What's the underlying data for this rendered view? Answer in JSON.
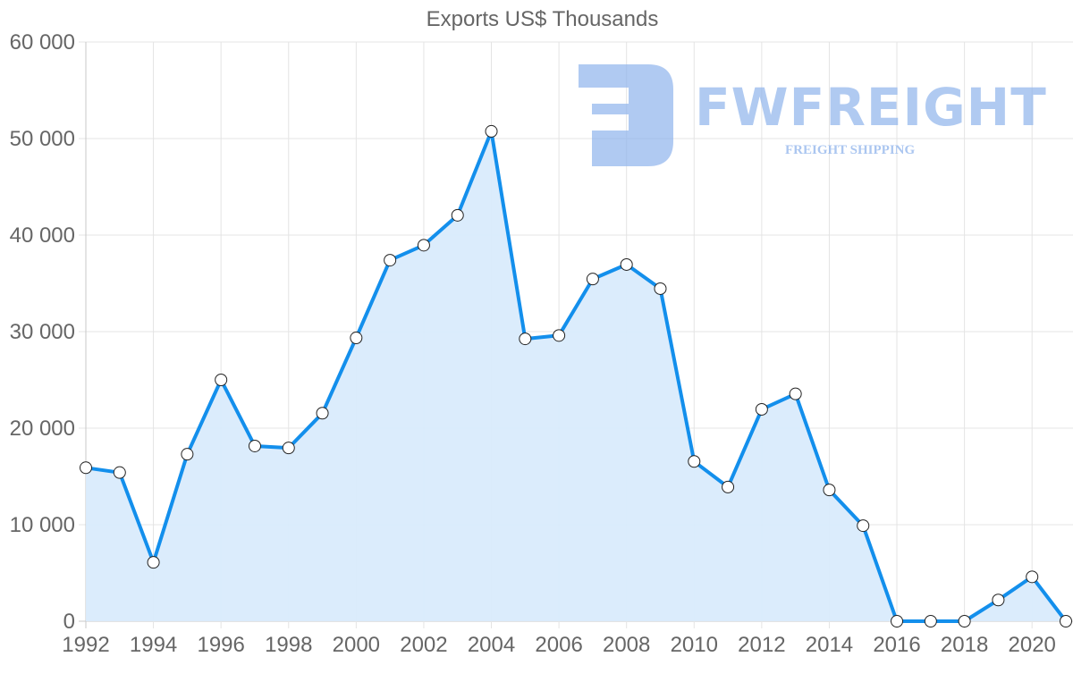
{
  "chart_data": {
    "type": "area",
    "title": "Exports US$ Thousands",
    "xlabel": "",
    "ylabel": "",
    "ylim": [
      0,
      60000
    ],
    "yticks": [
      "0",
      "10 000",
      "20 000",
      "30 000",
      "40 000",
      "50 000",
      "60 000"
    ],
    "xticks": [
      "1992",
      "1994",
      "1996",
      "1998",
      "2000",
      "2002",
      "2004",
      "2006",
      "2008",
      "2010",
      "2012",
      "2014",
      "2016",
      "2018",
      "2020"
    ],
    "grid": true,
    "legend": null,
    "x": [
      1992,
      1993,
      1994,
      1995,
      1996,
      1997,
      1998,
      1999,
      2000,
      2001,
      2002,
      2003,
      2004,
      2005,
      2006,
      2007,
      2008,
      2009,
      2010,
      2011,
      2012,
      2013,
      2014,
      2015,
      2016,
      2017,
      2018,
      2019,
      2020,
      2021
    ],
    "series": [
      {
        "name": "Exports US$ Thousands",
        "color": "#138fec",
        "fill": "#d9ebfc",
        "values": [
          15900,
          15400,
          6100,
          17300,
          25000,
          18150,
          17950,
          21550,
          29350,
          37400,
          38950,
          42050,
          50750,
          29250,
          29600,
          35450,
          36950,
          34450,
          16550,
          13900,
          21950,
          23550,
          13600,
          9900,
          0,
          0,
          0,
          2200,
          4600,
          0
        ]
      }
    ]
  },
  "watermark": {
    "brand": "FWFREIGHT",
    "tagline": "FREIGHT SHIPPING",
    "color": "#8fb4ec"
  }
}
